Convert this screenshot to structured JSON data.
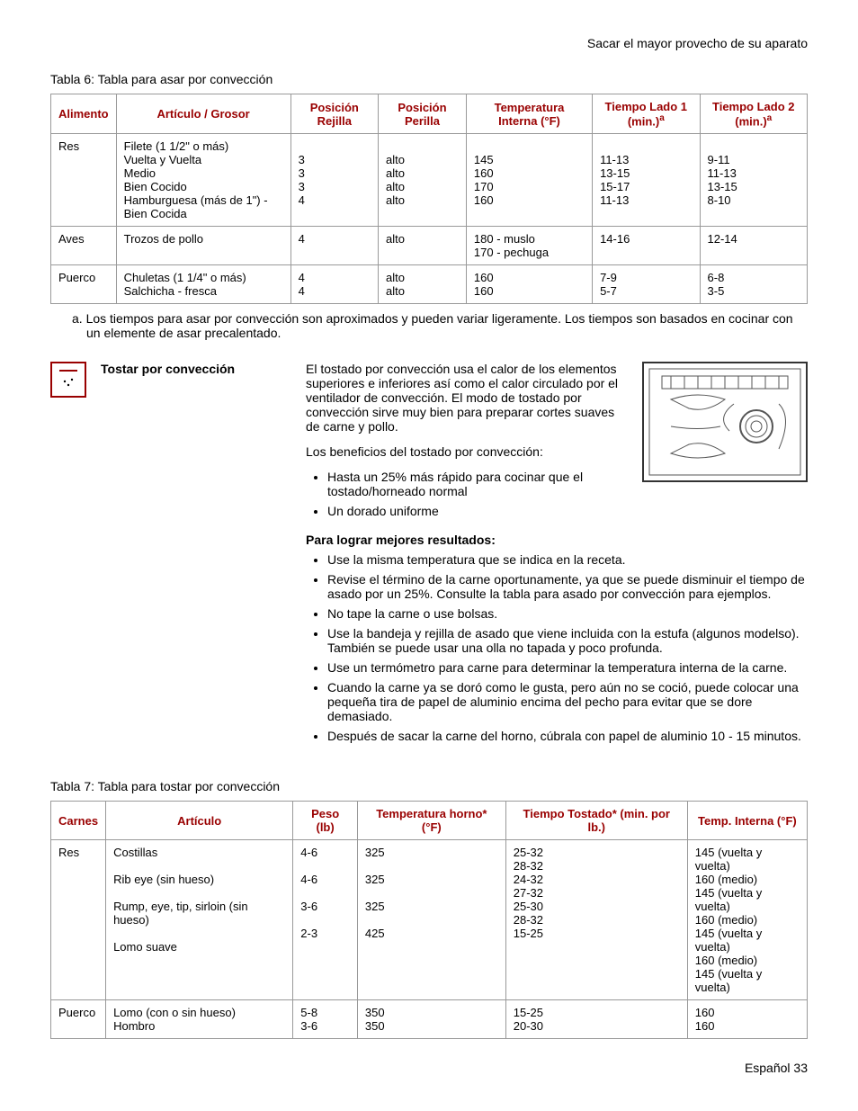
{
  "header": {
    "text": "Sacar el mayor provecho de su aparato"
  },
  "footer": {
    "text": "Español 33"
  },
  "table6": {
    "title": "Tabla 6: Tabla para asar por convección",
    "headers": {
      "food": "Alimento",
      "item": "Artículo / Grosor",
      "rack": "Posición Rejilla",
      "knob": "Posición Perilla",
      "temp_int": "Temperatura Interna (°F)",
      "time1": "Tiempo Lado 1 (min.)",
      "time2": "Tiempo Lado 2 (min.)",
      "sup": "a"
    },
    "rows": [
      {
        "food": "Res",
        "item": "Filete (1 1/2\" o más)\n   Vuelta y Vuelta\n   Medio\n   Bien Cocido\nHamburguesa (más de 1\") - Bien Cocida",
        "rack": "\n3\n3\n3\n4",
        "knob": "\nalto\nalto\nalto\nalto",
        "temp": "\n145\n160\n170\n160",
        "t1": "\n11-13\n13-15\n15-17\n11-13",
        "t2": "\n9-11\n11-13\n13-15\n8-10"
      },
      {
        "food": "Aves",
        "item": "Trozos de pollo",
        "rack": "4",
        "knob": "alto",
        "temp": "180 - muslo\n170 - pechuga",
        "t1": "14-16",
        "t2": "12-14"
      },
      {
        "food": "Puerco",
        "item": "Chuletas (1 1/4\" o más)\nSalchicha - fresca",
        "rack": "4\n4",
        "knob": "alto\nalto",
        "temp": "160\n160",
        "t1": "7-9\n5-7",
        "t2": "6-8\n3-5"
      }
    ],
    "footnote": "a. Los tiempos para asar por convección son aproximados y pueden variar ligeramente. Los tiempos son basados en cocinar con un elemente de asar precalentado."
  },
  "section": {
    "heading": "Tostar por convección",
    "p1": "El tostado por convección usa el calor de los elementos superiores e inferiores así como el calor circulado por el ventilador de convección. El modo de tostado por convección sirve muy bien para preparar cortes suaves de carne y pollo.",
    "p2": "Los beneficios del tostado por convección:",
    "benefits": [
      "Hasta un 25% más rápido para cocinar que el tostado/horneado normal",
      "Un dorado uniforme"
    ],
    "subheading": "Para lograr mejores resultados:",
    "tips": [
      "Use la misma temperatura que se indica en la receta.",
      "Revise el término de la carne oportunamente, ya que se puede disminuir el tiempo de asado por un 25%. Consulte la tabla para asado por convección para ejemplos.",
      "No tape la carne o use bolsas.",
      "Use la bandeja y rejilla de asado que viene incluida con la estufa (algunos modelso). También se puede usar una olla no tapada y poco profunda.",
      "Use un termómetro para carne para determinar la temperatura interna de la carne.",
      "Cuando la carne ya se doró como le gusta, pero aún no se coció, puede colocar una pequeña tira de papel de aluminio encima del pecho para evitar que se dore demasiado.",
      "Después de sacar la carne del horno, cúbrala con papel de aluminio 10 - 15 minutos."
    ]
  },
  "table7": {
    "title": "Tabla 7: Tabla para tostar por convección",
    "headers": {
      "meat": "Carnes",
      "item": "Artículo",
      "weight": "Peso (lb)",
      "oven": "Temperatura horno* (°F)",
      "time": "Tiempo Tostado* (min. por lb.)",
      "internal": "Temp. Interna (°F)"
    },
    "rows": [
      {
        "meat": "Res",
        "item": "Costillas\n\nRib eye (sin hueso)\n\nRump, eye, tip, sirloin (sin hueso)\n\nLomo suave",
        "weight": "4-6\n\n4-6\n\n3-6\n\n2-3",
        "oven": "325\n\n325\n\n325\n\n425",
        "time": "25-32\n28-32\n24-32\n27-32\n25-30\n28-32\n15-25",
        "internal": "145 (vuelta y vuelta)\n160 (medio)\n145 (vuelta y vuelta)\n160 (medio)\n145 (vuelta y vuelta)\n160 (medio)\n145 (vuelta y vuelta)"
      },
      {
        "meat": "Puerco",
        "item": "Lomo (con o sin hueso)\nHombro",
        "weight": "5-8\n3-6",
        "oven": "350\n350",
        "time": "15-25\n20-30",
        "internal": "160\n160"
      }
    ]
  }
}
